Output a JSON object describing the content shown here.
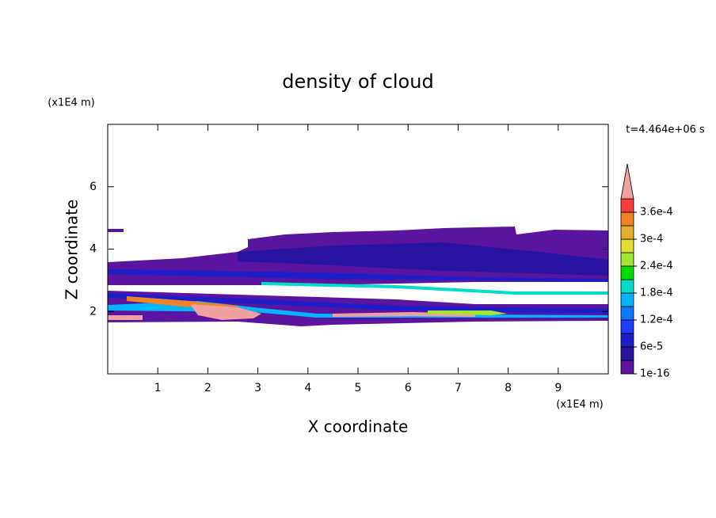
{
  "chart_data": {
    "type": "contour",
    "title": "density of cloud",
    "x_label": "X coordinate",
    "y_label": "Z coordinate",
    "x_unit": "(x1E4 m)",
    "y_unit": "(x1E4 m)",
    "time_label": "t=4.464e+06 s",
    "xlim": [
      0,
      10
    ],
    "ylim": [
      0,
      8
    ],
    "xticks": [
      1,
      2,
      3,
      4,
      5,
      6,
      7,
      8,
      9
    ],
    "yticks": [
      2,
      4,
      6
    ],
    "colorbar": {
      "levels": [
        1e-16,
        3e-05,
        6e-05,
        9e-05,
        0.00012,
        0.00015,
        0.00018,
        0.00021,
        0.00024,
        0.00027,
        0.0003,
        0.00033,
        0.00036,
        0.00039
      ],
      "colors": [
        "#5a14a0",
        "#2814a0",
        "#1e1ec8",
        "#1e3cff",
        "#0a78ff",
        "#00b4ff",
        "#00dcc8",
        "#00dc00",
        "#a0e632",
        "#e6dc32",
        "#e6af2d",
        "#f08228",
        "#fa3c3c",
        "#f0a0a0"
      ],
      "ticks": [
        {
          "value": 1e-16,
          "label": "1e-16"
        },
        {
          "value": 6e-05,
          "label": "6e-5"
        },
        {
          "value": 0.00012,
          "label": "1.2e-4"
        },
        {
          "value": 0.00018,
          "label": "1.8e-4"
        },
        {
          "value": 0.00024,
          "label": "2.4e-4"
        },
        {
          "value": 0.0003,
          "label": "3e-4"
        },
        {
          "value": 0.00036,
          "label": "3.6e-4"
        }
      ]
    }
  }
}
